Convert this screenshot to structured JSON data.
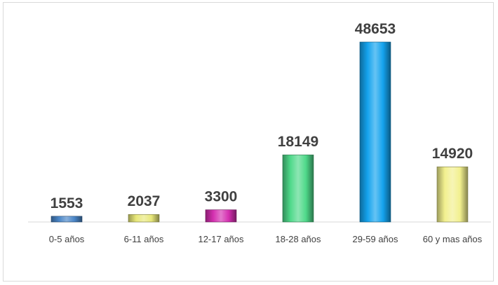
{
  "chart_data": {
    "type": "bar",
    "title": "",
    "xlabel": "",
    "ylabel": "",
    "categories": [
      "0-5 años",
      "6-11 años",
      "12-17 años",
      "18-28 años",
      "29-59 años",
      "60 y mas años"
    ],
    "values": [
      1553,
      2037,
      3300,
      18149,
      48653,
      14920
    ],
    "bar_colors": [
      "#4a86c8",
      "#e8e87a",
      "#d42fb0",
      "#4fd98a",
      "#14a3ee",
      "#f2f08e"
    ],
    "ylim": [
      0,
      48653
    ],
    "grid": false,
    "legend": "none",
    "data_labels": true
  }
}
